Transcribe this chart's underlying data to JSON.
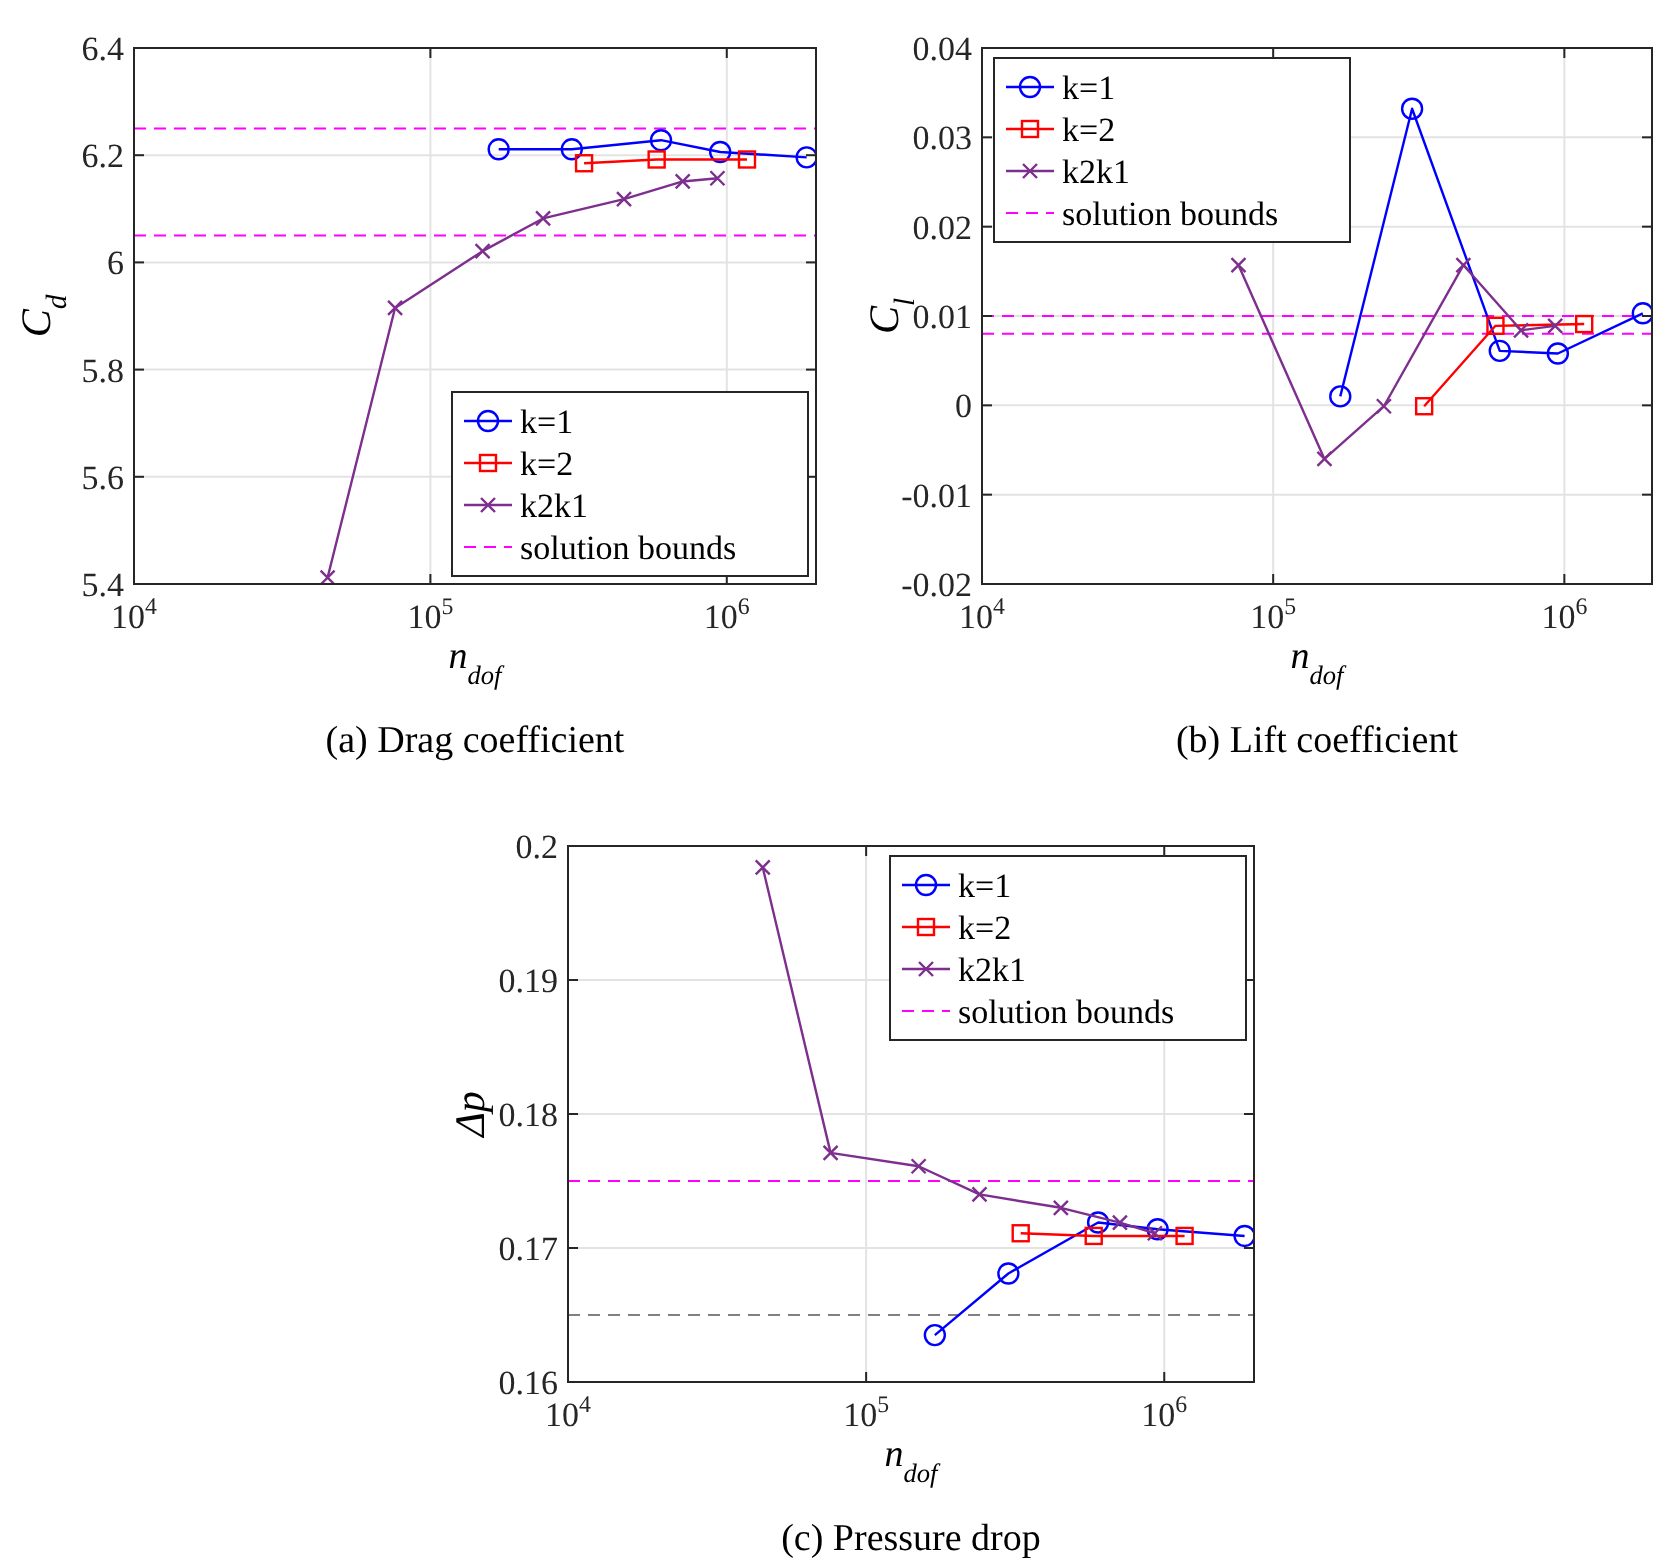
{
  "chart_data": [
    {
      "type": "line",
      "title": "(a) Drag coefficient",
      "xlabel": "n$_{dof}$",
      "ylabel": "C$_{d}$",
      "log": "x",
      "grid": true,
      "legend": "bottom right",
      "xlim": [
        10000,
        2000000
      ],
      "xticks": [
        {
          "value": 10000,
          "label": "10$^{4}$"
        },
        {
          "value": 100000,
          "label": "10$^{5}$"
        },
        {
          "value": 1000000,
          "label": "10$^{6}$"
        }
      ],
      "ylim": [
        5.4,
        6.4
      ],
      "yticks": [
        {
          "value": 5.4,
          "label": "5.4"
        },
        {
          "value": 5.6,
          "label": "5.6"
        },
        {
          "value": 5.8,
          "label": "5.8"
        },
        {
          "value": 6,
          "label": "6"
        },
        {
          "value": 6.2,
          "label": "6.2"
        },
        {
          "value": 6.4,
          "label": "6.4"
        }
      ],
      "series": [
        {
          "name": "k=1",
          "color": "#0000ff",
          "marker": "circle",
          "x": [
            170000,
            300000,
            600000,
            950000,
            1860000
          ],
          "values": [
            6.211,
            6.211,
            6.228,
            6.206,
            6.196
          ]
        },
        {
          "name": "k=2",
          "color": "#ff0000",
          "marker": "square",
          "x": [
            330000,
            580000,
            1170000
          ],
          "values": [
            6.185,
            6.192,
            6.192
          ]
        },
        {
          "name": "k2k1",
          "color": "#7e2f8e",
          "marker": "cross",
          "x": [
            45000,
            76000,
            150000,
            240000,
            450000,
            710000,
            930000
          ],
          "values": [
            5.412,
            5.915,
            6.021,
            6.082,
            6.118,
            6.151,
            6.157
          ]
        }
      ],
      "ref_lines": [
        {
          "axis": "y",
          "value": 6.25,
          "label": "solution bounds",
          "color": "#ff00ff",
          "line_style": "dashed"
        },
        {
          "axis": "y",
          "value": 6.05,
          "color": "#ff00ff",
          "line_style": "dashed"
        }
      ]
    },
    {
      "type": "line",
      "title": "(b) Lift coefficient",
      "xlabel": "n$_{dof}$",
      "ylabel": "C$_{l}$",
      "log": "x",
      "grid": true,
      "legend": "top left",
      "xlim": [
        10000,
        2000000
      ],
      "xticks": [
        {
          "value": 10000,
          "label": "10$^{4}$"
        },
        {
          "value": 100000,
          "label": "10$^{5}$"
        },
        {
          "value": 1000000,
          "label": "10$^{6}$"
        }
      ],
      "ylim": [
        -0.02,
        0.04
      ],
      "yticks": [
        {
          "value": -0.02,
          "label": "-0.02"
        },
        {
          "value": -0.01,
          "label": "-0.01"
        },
        {
          "value": 0,
          "label": "0"
        },
        {
          "value": 0.01,
          "label": "0.01"
        },
        {
          "value": 0.02,
          "label": "0.02"
        },
        {
          "value": 0.03,
          "label": "0.03"
        },
        {
          "value": 0.04,
          "label": "0.04"
        }
      ],
      "series": [
        {
          "name": "k=1",
          "color": "#0000ff",
          "marker": "circle",
          "x": [
            170000,
            300000,
            600000,
            950000,
            1860000
          ],
          "values": [
            0.001,
            0.0332,
            0.0061,
            0.0058,
            0.0103
          ]
        },
        {
          "name": "k=2",
          "color": "#ff0000",
          "marker": "square",
          "x": [
            330000,
            580000,
            1170000
          ],
          "values": [
            -0.0001,
            0.0089,
            0.0091
          ]
        },
        {
          "name": "k2k1",
          "color": "#7e2f8e",
          "marker": "cross",
          "x": [
            76000,
            150000,
            240000,
            450000,
            710000,
            930000
          ],
          "values": [
            0.0157,
            -0.006,
            -0.0001,
            0.0157,
            0.0084,
            0.0089
          ]
        }
      ],
      "ref_lines": [
        {
          "axis": "y",
          "value": 0.01,
          "label": "solution bounds",
          "color": "#ff00ff",
          "line_style": "dashed"
        },
        {
          "axis": "y",
          "value": 0.008,
          "color": "#ff00ff",
          "line_style": "dashed"
        }
      ]
    },
    {
      "type": "line",
      "title": "(c) Pressure drop",
      "xlabel": "n$_{dof}$",
      "ylabel": "Δp",
      "log": "x",
      "grid": true,
      "legend": "top right",
      "xlim": [
        10000,
        2000000
      ],
      "xticks": [
        {
          "value": 10000,
          "label": "10$^{4}$"
        },
        {
          "value": 100000,
          "label": "10$^{5}$"
        },
        {
          "value": 1000000,
          "label": "10$^{6}$"
        }
      ],
      "ylim": [
        0.16,
        0.2
      ],
      "yticks": [
        {
          "value": 0.16,
          "label": "0.16"
        },
        {
          "value": 0.17,
          "label": "0.17"
        },
        {
          "value": 0.18,
          "label": "0.18"
        },
        {
          "value": 0.19,
          "label": "0.19"
        },
        {
          "value": 0.2,
          "label": "0.2"
        }
      ],
      "series": [
        {
          "name": "k=1",
          "color": "#0000ff",
          "marker": "circle",
          "x": [
            170000,
            300000,
            600000,
            950000,
            1860000
          ],
          "values": [
            0.1635,
            0.1681,
            0.1719,
            0.1714,
            0.1709
          ]
        },
        {
          "name": "k=2",
          "color": "#ff0000",
          "marker": "square",
          "x": [
            330000,
            580000,
            1170000
          ],
          "values": [
            0.1711,
            0.1709,
            0.1709
          ]
        },
        {
          "name": "k2k1",
          "color": "#7e2f8e",
          "marker": "cross",
          "x": [
            45000,
            76000,
            150000,
            240000,
            450000,
            710000,
            930000
          ],
          "values": [
            0.1984,
            0.1771,
            0.1761,
            0.174,
            0.173,
            0.1719,
            0.1711
          ]
        }
      ],
      "ref_lines": [
        {
          "axis": "y",
          "value": 0.175,
          "label": "solution bounds",
          "color": "#ff00ff",
          "line_style": "dashed"
        },
        {
          "axis": "y",
          "value": 0.165,
          "color": "#808080",
          "line_style": "dashed"
        }
      ]
    }
  ]
}
